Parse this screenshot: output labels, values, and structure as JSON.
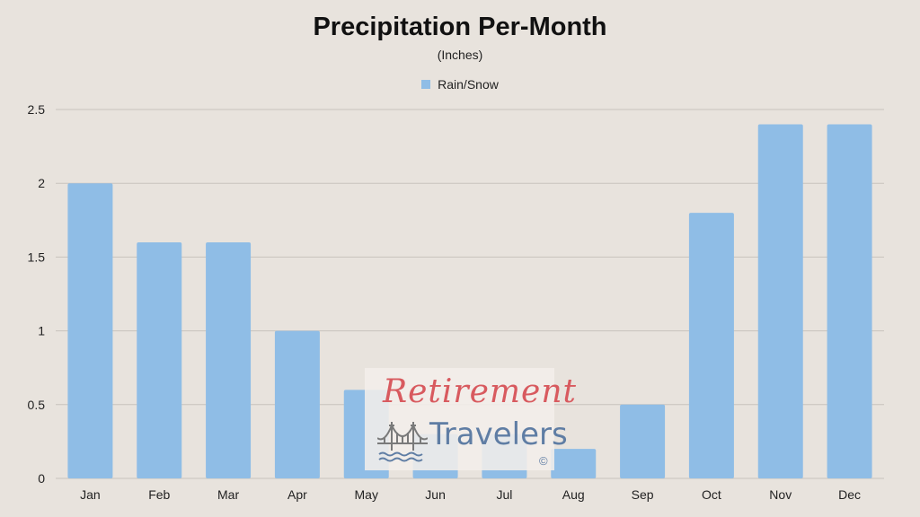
{
  "chart_data": {
    "type": "bar",
    "title": "Precipitation Per-Month",
    "subtitle": "(Inches)",
    "legend_position": "top-center",
    "categories": [
      "Jan",
      "Feb",
      "Mar",
      "Apr",
      "May",
      "Jun",
      "Jul",
      "Aug",
      "Sep",
      "Oct",
      "Nov",
      "Dec"
    ],
    "series": [
      {
        "name": "Rain/Snow",
        "color": "#8fbde6",
        "values": [
          2.0,
          1.6,
          1.6,
          1.0,
          0.6,
          0.3,
          0.3,
          0.2,
          0.5,
          1.8,
          2.4,
          2.4
        ]
      }
    ],
    "ylim": [
      0,
      2.5
    ],
    "y_ticks": [
      "0",
      "0.5",
      "1",
      "1.5",
      "2",
      "2.5"
    ],
    "grid": true,
    "gridline_color": "#c8c3bd"
  },
  "watermark": {
    "line1": "Retirement",
    "line2": "Travelers",
    "copyright": "©",
    "icon": "bridge-icon"
  }
}
